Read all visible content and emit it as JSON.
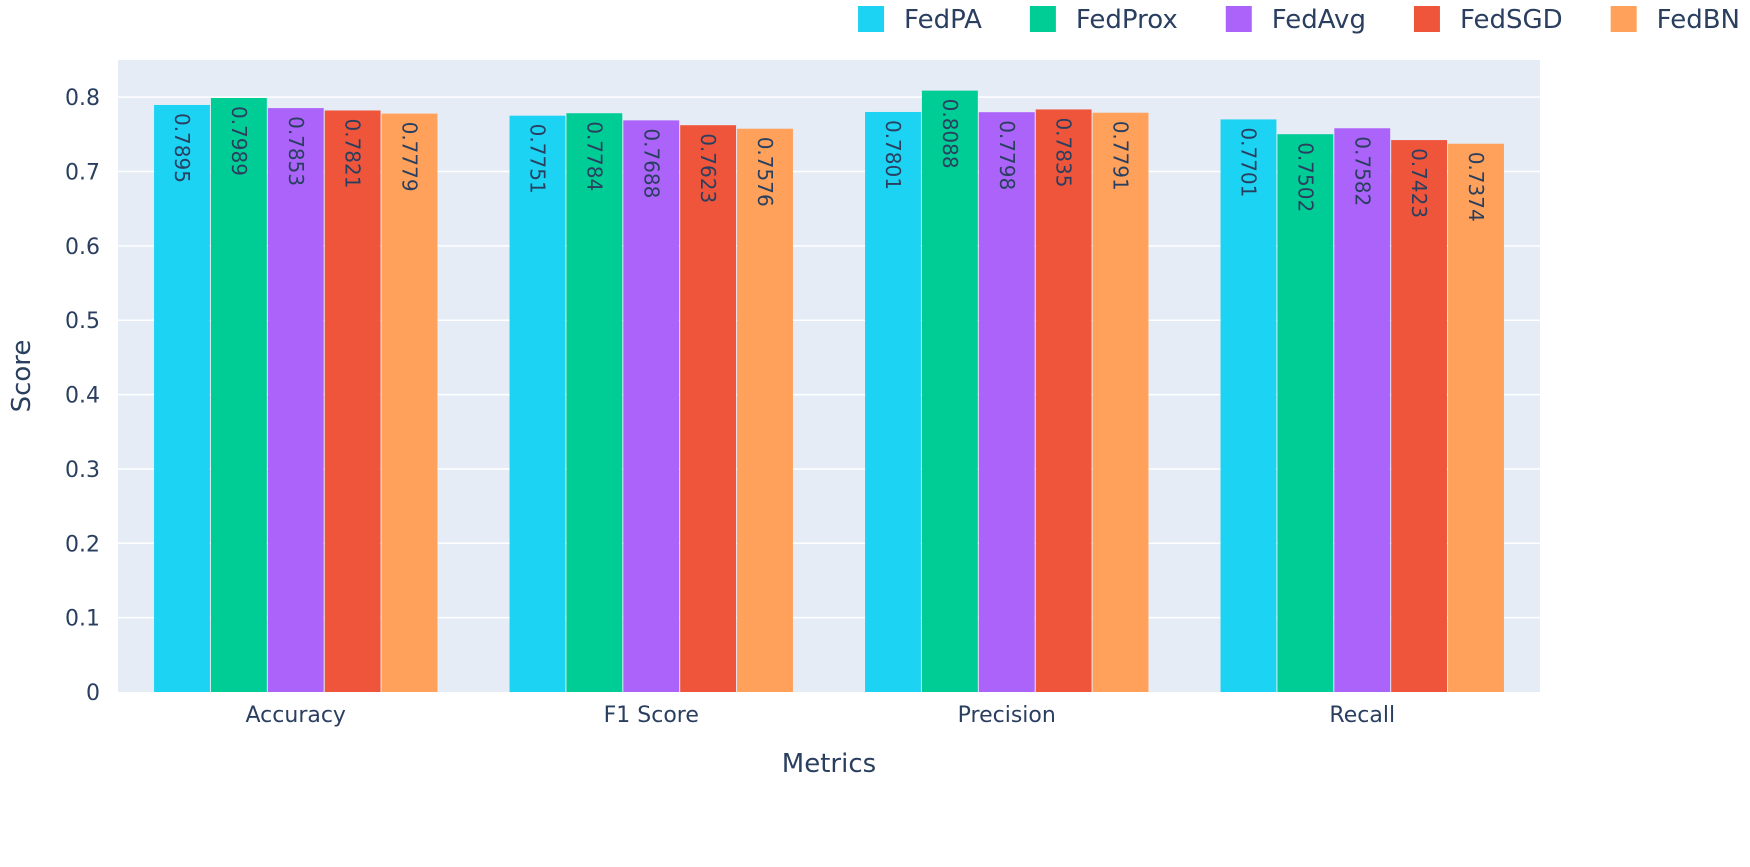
{
  "chart_data": {
    "type": "bar",
    "title": "",
    "xlabel": "Metrics",
    "ylabel": "Score",
    "ylim": [
      0,
      0.85
    ],
    "yticks": [
      "0",
      "0.1",
      "0.2",
      "0.3",
      "0.4",
      "0.5",
      "0.6",
      "0.7",
      "0.8"
    ],
    "grid": true,
    "legend_position": "top-right",
    "categories": [
      "Accuracy",
      "F1 Score",
      "Precision",
      "Recall"
    ],
    "series": [
      {
        "name": "FedPA",
        "color": "#1cd3f3",
        "values": [
          0.7895,
          0.7751,
          0.7801,
          0.7701
        ],
        "labels": [
          "0.7895",
          "0.7751",
          "0.7801",
          "0.7701"
        ]
      },
      {
        "name": "FedProx",
        "color": "#00cc96",
        "values": [
          0.7989,
          0.7784,
          0.8088,
          0.7502
        ],
        "labels": [
          "0.7989",
          "0.7784",
          "0.8088",
          "0.7502"
        ]
      },
      {
        "name": "FedAvg",
        "color": "#ab63fa",
        "values": [
          0.7853,
          0.7688,
          0.7798,
          0.7582
        ],
        "labels": [
          "0.7853",
          "0.7688",
          "0.7798",
          "0.7582"
        ]
      },
      {
        "name": "FedSGD",
        "color": "#ef553b",
        "values": [
          0.7821,
          0.7623,
          0.7835,
          0.7423
        ],
        "labels": [
          "0.7821",
          "0.7623",
          "0.7835",
          "0.7423"
        ]
      },
      {
        "name": "FedBN",
        "color": "#ffa15a",
        "values": [
          0.7779,
          0.7576,
          0.7791,
          0.7374
        ],
        "labels": [
          "0.7779",
          "0.7576",
          "0.7791",
          "0.7374"
        ]
      }
    ]
  },
  "colors": {
    "plot_background": "#e5ecf6",
    "gridline": "#ffffff",
    "text": "#2a3f5f"
  }
}
